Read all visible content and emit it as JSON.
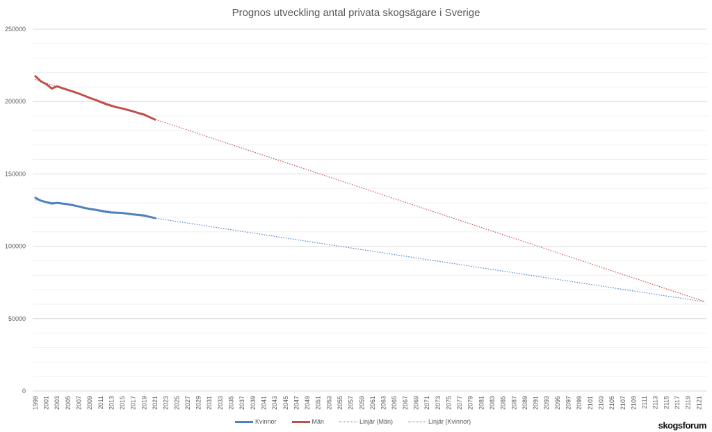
{
  "chart_data": {
    "type": "line",
    "title": "Prognos utveckling antal privata skogsägare i Sverige",
    "xlabel": "",
    "ylabel": "",
    "x_range": [
      1999,
      2122
    ],
    "x_tick_step": 2,
    "ylim": [
      0,
      250000
    ],
    "y_ticks": [
      0,
      50000,
      100000,
      150000,
      200000,
      250000
    ],
    "y_minor_grid_step": 10000,
    "grid": true,
    "legend_placement": "bottom",
    "x": [
      1999,
      2000,
      2001,
      2002,
      2003,
      2004,
      2005,
      2006,
      2007,
      2008,
      2009,
      2010,
      2011,
      2012,
      2013,
      2014,
      2015,
      2016,
      2017,
      2018,
      2019,
      2020,
      2021
    ],
    "series": [
      {
        "name": "Kvinnor",
        "color": "#4F81BD",
        "style": "solid",
        "values": [
          133500,
          131500,
          130500,
          129500,
          130000,
          129500,
          129000,
          128300,
          127500,
          126500,
          125800,
          125200,
          124500,
          123800,
          123300,
          123200,
          123000,
          122500,
          122000,
          121700,
          121300,
          120300,
          119500
        ]
      },
      {
        "name": "Män",
        "color": "#C0504D",
        "style": "solid",
        "values": [
          217500,
          214000,
          212000,
          209000,
          210500,
          209200,
          208000,
          206800,
          205500,
          204000,
          202500,
          201200,
          199700,
          198200,
          197000,
          196000,
          195200,
          194200,
          193200,
          192000,
          191000,
          189200,
          187500
        ]
      }
    ],
    "trendlines": [
      {
        "name": "Linjär (Män)",
        "of": "Män",
        "type": "linear",
        "color": "#C0504D",
        "style": "dotted"
      },
      {
        "name": "Linjär (Kvinnor)",
        "of": "Kvinnor",
        "type": "linear",
        "color": "#4F81BD",
        "style": "dotted"
      }
    ]
  },
  "watermark": "skogsforum"
}
